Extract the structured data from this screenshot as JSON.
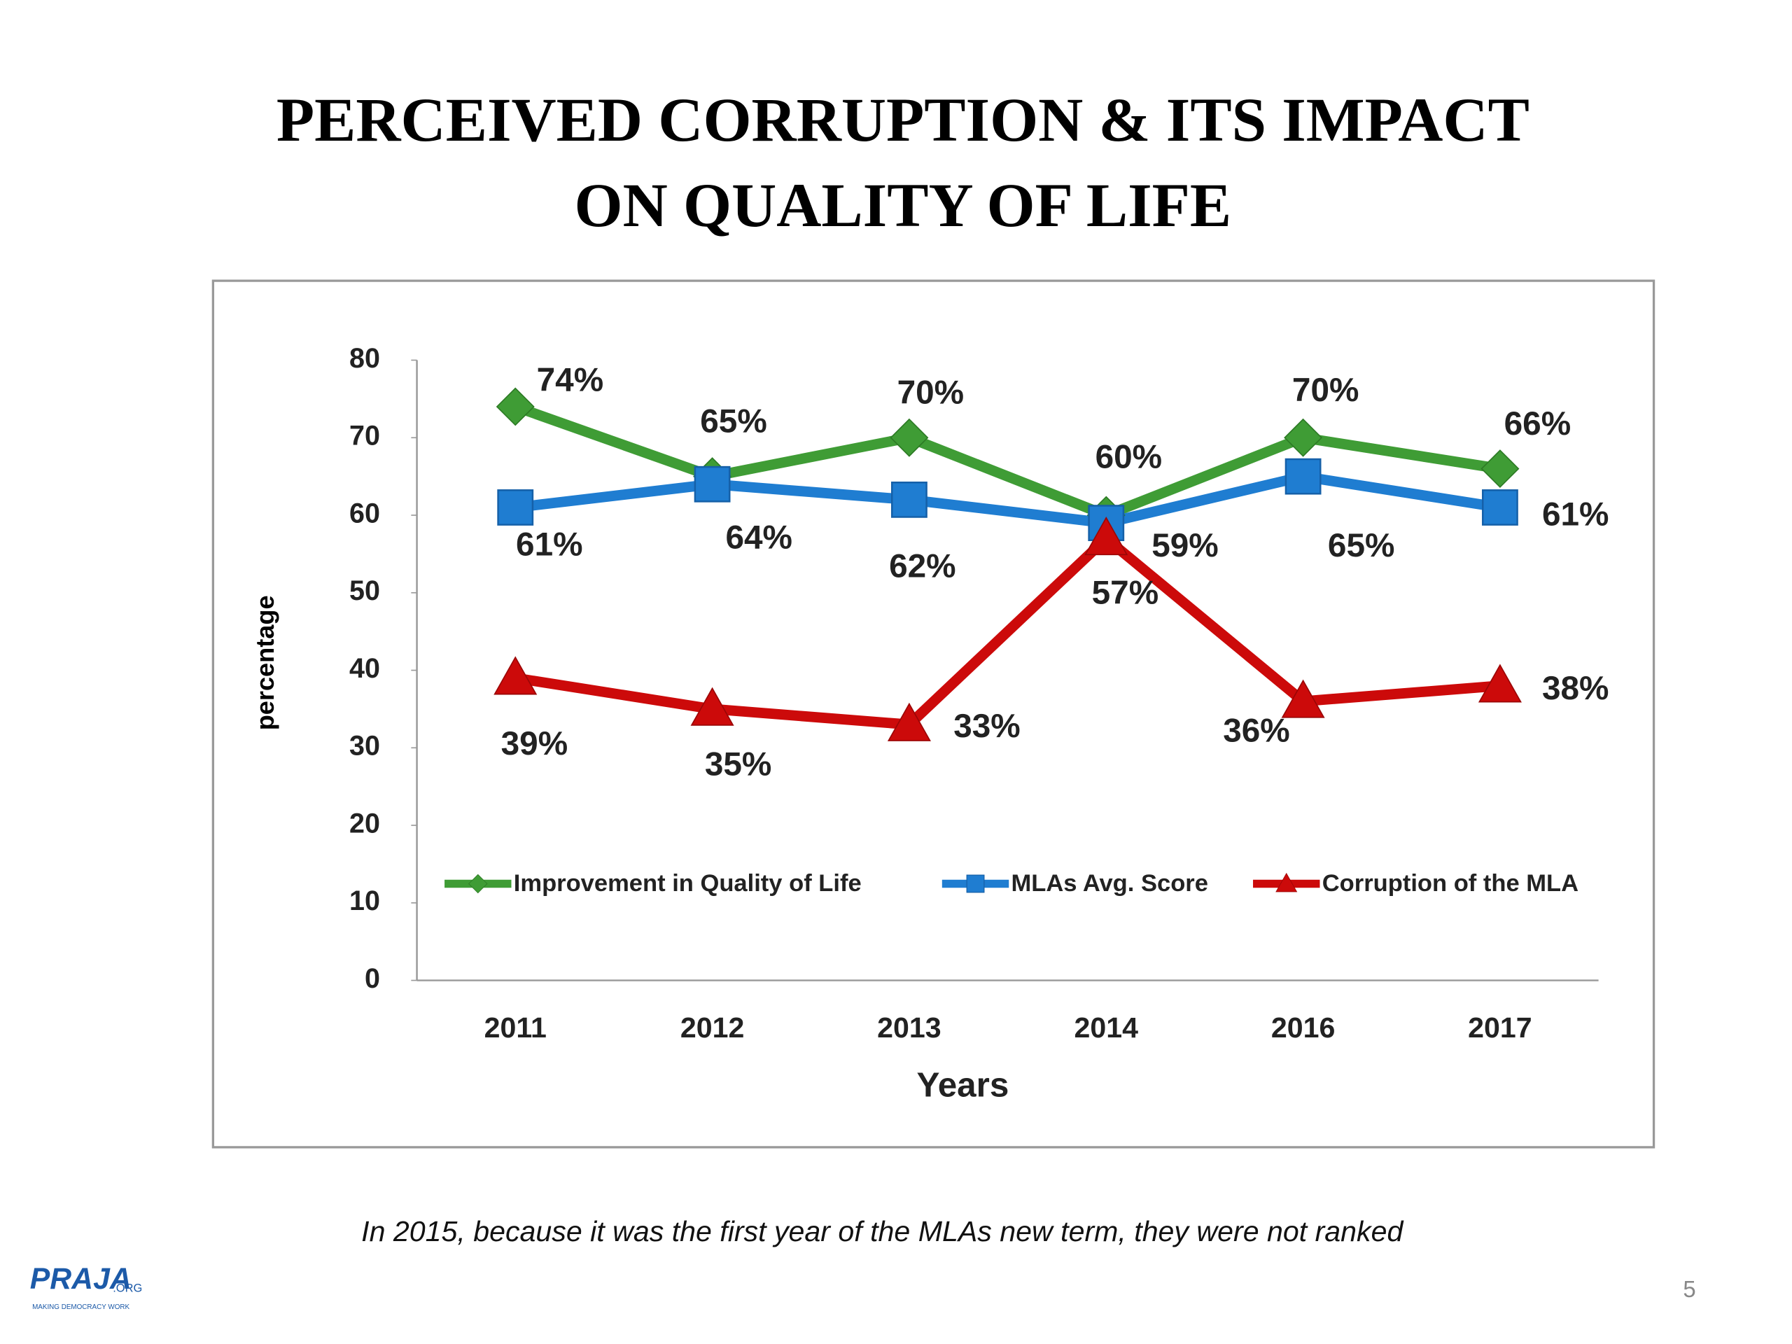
{
  "chart_data": {
    "type": "line",
    "title": [
      "PERCEIVED CORRUPTION & ITS IMPACT",
      "ON QUALITY OF LIFE"
    ],
    "x_label": "Years",
    "y_label": "percentage",
    "categories": [
      "2011",
      "2012",
      "2013",
      "2014",
      "2016",
      "2017"
    ],
    "series": [
      {
        "name": "Improvement in Quality of Life",
        "color": "#3f9c35",
        "marker": "diamond",
        "values": [
          74,
          65,
          70,
          60,
          70,
          66
        ],
        "value_labels": [
          "74%",
          "65%",
          "70%",
          "60%",
          "70%",
          "66%"
        ]
      },
      {
        "name": "MLAs Avg. Score",
        "color": "#1f7dd1",
        "marker": "square",
        "values": [
          61,
          64,
          62,
          59,
          65,
          61
        ],
        "value_labels": [
          "61%",
          "64%",
          "62%",
          "59%",
          "65%",
          "61%"
        ]
      },
      {
        "name": "Corruption of the MLA",
        "color": "#cc0a0a",
        "marker": "triangle",
        "values": [
          39,
          35,
          33,
          57,
          36,
          38
        ],
        "value_labels": [
          "39%",
          "35%",
          "33%",
          "57%",
          "36%",
          "38%"
        ]
      }
    ],
    "ylim": [
      0,
      80
    ],
    "yticks": [
      0,
      10,
      20,
      30,
      40,
      50,
      60,
      70,
      80
    ],
    "grid": false,
    "legend": "bottom"
  },
  "footnote": "In 2015, because it was the first year of the MLAs new term, they were not ranked",
  "page_number": "5",
  "logo": {
    "name": "PRAJA",
    "suffix": ".ORG",
    "tagline": "MAKING DEMOCRACY WORK"
  }
}
